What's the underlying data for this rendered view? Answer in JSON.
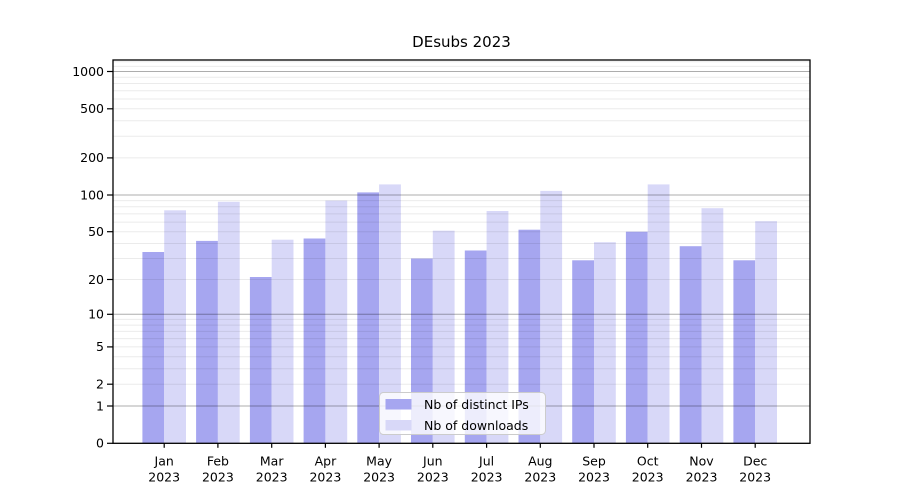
{
  "chart_data": {
    "type": "bar",
    "title": "DEsubs 2023",
    "categories": [
      "Jan 2023",
      "Feb 2023",
      "Mar 2023",
      "Apr 2023",
      "May 2023",
      "Jun 2023",
      "Jul 2023",
      "Aug 2023",
      "Sep 2023",
      "Oct 2023",
      "Nov 2023",
      "Dec 2023"
    ],
    "series": [
      {
        "name": "Nb of distinct IPs",
        "color": "#a6a6f0",
        "values": [
          34,
          42,
          21,
          44,
          105,
          30,
          35,
          52,
          29,
          50,
          38,
          29
        ]
      },
      {
        "name": "Nb of downloads",
        "color": "#d8d8f8",
        "values": [
          75,
          88,
          43,
          90,
          122,
          51,
          74,
          108,
          41,
          122,
          78,
          61
        ]
      }
    ],
    "xlabel": "",
    "ylabel": "",
    "y_axis": {
      "scale": "log1p",
      "tick_values": [
        0,
        1,
        2,
        5,
        10,
        20,
        50,
        100,
        200,
        500,
        1000
      ],
      "tick_labels": [
        "0",
        "1",
        "2",
        "5",
        "10",
        "20",
        "50",
        "100",
        "200",
        "500",
        "1000"
      ],
      "major_gridline_values": [
        1,
        10,
        100,
        1000
      ],
      "ylim": [
        0,
        1240
      ],
      "grid": true
    },
    "legend": {
      "position": "lower center",
      "entries": [
        "Nb of distinct IPs",
        "Nb of downloads"
      ]
    },
    "colors": {
      "major_grid": "rgba(0,0,0,0.32)",
      "minor_grid": "rgba(0,0,0,0.08)",
      "spine": "#000000",
      "legend_border": "#cccccc",
      "legend_bg": "#ffffff"
    }
  }
}
